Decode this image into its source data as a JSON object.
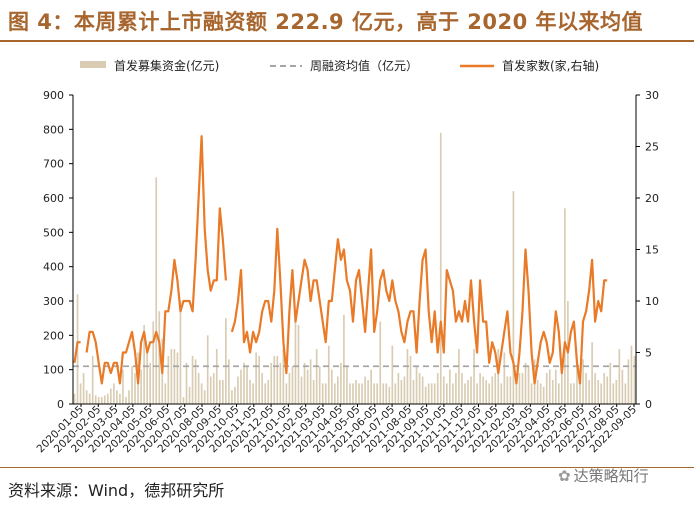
{
  "title": "图 4：本周累计上市融资额 222.9 亿元，高于 2020 年以来均值",
  "source": "资料来源：Wind，德邦研究所",
  "watermark": "达策略知行",
  "colors": {
    "accent": "#a8662f",
    "bar": "#d9ccb2",
    "line": "#e97a27",
    "avg": "#a6a6a6"
  },
  "chart_data": {
    "type": "bar+line",
    "legend": [
      {
        "label": "首发募集资金(亿元)",
        "kind": "bar"
      },
      {
        "label": "周融资均值（亿元）",
        "kind": "dashed"
      },
      {
        "label": "首发家数(家,右轴)",
        "kind": "line"
      }
    ],
    "x_tick_labels": [
      "2020-01-05",
      "2020-02-05",
      "2020-03-05",
      "2020-04-05",
      "2020-05-05",
      "2020-06-05",
      "2020-07-05",
      "2020-08-05",
      "2020-09-05",
      "2020-10-05",
      "2020-11-05",
      "2020-12-05",
      "2021-01-05",
      "2021-02-05",
      "2021-03-05",
      "2021-04-05",
      "2021-05-05",
      "2021-06-05",
      "2021-07-05",
      "2021-08-05",
      "2021-09-05",
      "2021-10-05",
      "2021-11-05",
      "2021-12-05",
      "2022-01-05",
      "2022-02-05",
      "2022-03-05",
      "2022-04-05",
      "2022-05-05",
      "2022-06-05",
      "2022-07-05",
      "2022-08-05",
      "2022-09-05"
    ],
    "y_left": {
      "min": 0,
      "max": 900,
      "ticks": [
        0,
        100,
        200,
        300,
        400,
        500,
        600,
        700,
        800,
        900
      ]
    },
    "y_right": {
      "min": 0,
      "max": 30,
      "ticks": [
        0,
        5,
        10,
        15,
        20,
        25,
        30
      ]
    },
    "average_line": 110,
    "series": [
      {
        "name": "首发募集资金(亿元)",
        "axis": "left",
        "kind": "bar",
        "values": [
          30,
          320,
          60,
          90,
          40,
          30,
          140,
          25,
          20,
          20,
          25,
          30,
          45,
          60,
          40,
          30,
          100,
          20,
          40,
          110,
          90,
          150,
          100,
          230,
          160,
          120,
          240,
          660,
          270,
          190,
          60,
          140,
          160,
          160,
          150,
          300,
          20,
          120,
          50,
          140,
          130,
          90,
          60,
          40,
          200,
          80,
          90,
          160,
          70,
          70,
          250,
          130,
          40,
          50,
          80,
          100,
          120,
          110,
          70,
          60,
          150,
          140,
          90,
          60,
          70,
          120,
          140,
          140,
          120,
          160,
          60,
          90,
          110,
          260,
          230,
          80,
          120,
          100,
          130,
          70,
          160,
          110,
          60,
          60,
          170,
          100,
          60,
          80,
          120,
          260,
          110,
          60,
          60,
          70,
          60,
          60,
          80,
          70,
          100,
          60,
          60,
          240,
          60,
          60,
          50,
          170,
          60,
          90,
          70,
          80,
          160,
          140,
          70,
          110,
          90,
          80,
          50,
          60,
          60,
          60,
          90,
          790,
          80,
          60,
          100,
          60,
          90,
          160,
          90,
          60,
          70,
          80,
          160,
          60,
          90,
          80,
          70,
          60,
          80,
          90,
          160,
          60,
          150,
          80,
          80,
          620,
          80,
          90,
          90,
          120,
          110,
          60,
          130,
          70,
          60,
          50,
          90,
          100,
          70,
          100,
          60,
          130,
          570,
          300,
          60,
          60,
          120,
          70,
          130,
          90,
          70,
          180,
          90,
          70,
          60,
          90,
          80,
          120,
          60,
          70,
          160,
          100,
          60,
          130,
          170,
          140
        ],
        "markers": [
          1,
          3,
          5,
          10
        ]
      },
      {
        "name": "首发家数(家,右轴)",
        "axis": "right",
        "kind": "line",
        "segments": [
          {
            "start": 0,
            "values": [
              4,
              6,
              6
            ]
          },
          {
            "start": 4,
            "values": [
              5,
              7,
              7,
              6,
              4,
              2,
              4,
              4,
              3,
              4,
              4,
              2,
              5,
              5,
              6,
              7,
              5,
              2,
              6,
              7,
              5,
              6,
              6,
              7,
              6,
              3,
              9,
              9,
              11,
              14,
              12,
              9,
              10,
              10,
              10,
              9,
              14,
              20,
              26,
              17,
              13,
              11,
              12,
              12,
              19,
              16,
              12
            ]
          },
          {
            "start": 52,
            "values": [
              7,
              8,
              10,
              13,
              6,
              7,
              5,
              7,
              6,
              7,
              9,
              10,
              10,
              8,
              11,
              17,
              12,
              6,
              3,
              9,
              13,
              8,
              10,
              12,
              14,
              13,
              10,
              12,
              12,
              10,
              8,
              6,
              10,
              10,
              13,
              16,
              14,
              15,
              12,
              11,
              8,
              12,
              13,
              10,
              7,
              11,
              15,
              7,
              9,
              12,
              13,
              11,
              10,
              12,
              10,
              9,
              7,
              6,
              8,
              9,
              9,
              5,
              10,
              14,
              15,
              9,
              6,
              9,
              5,
              8,
              5,
              13,
              12,
              11,
              8,
              9,
              8,
              10,
              8,
              12,
              8,
              5,
              12,
              8,
              8,
              4,
              6,
              5,
              3,
              5,
              7,
              9,
              5,
              4,
              2,
              5,
              9,
              15,
              11,
              5,
              2,
              4,
              6,
              7,
              6,
              4,
              5,
              9,
              7,
              3,
              6,
              5,
              7,
              8,
              4,
              2,
              8,
              9,
              11,
              14,
              8,
              10,
              9,
              12,
              12
            ]
          }
        ]
      }
    ]
  }
}
